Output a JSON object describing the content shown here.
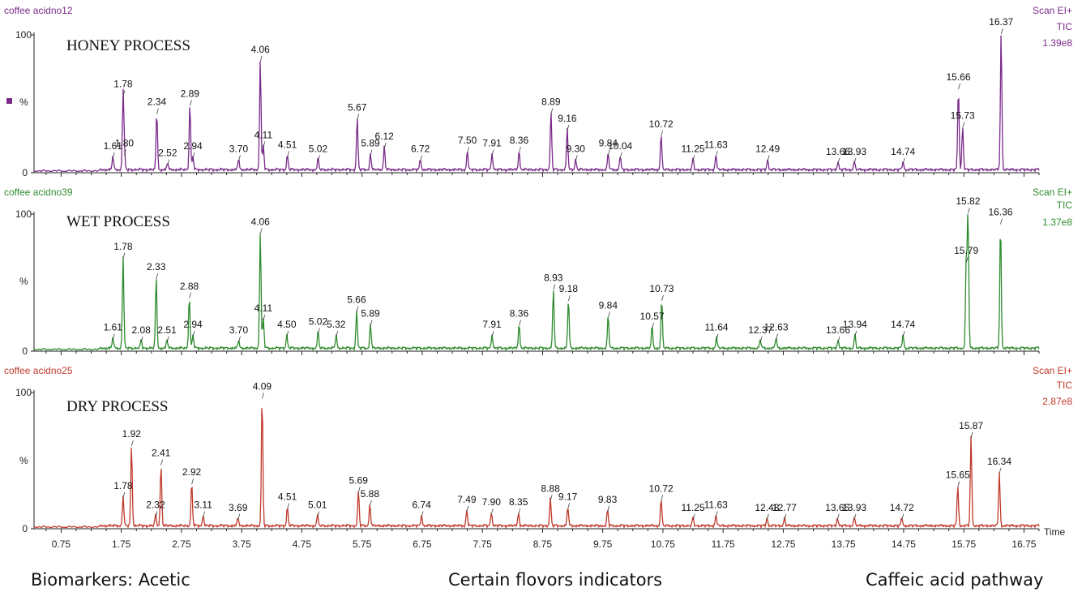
{
  "chart_data": [
    {
      "type": "line",
      "series_name": "coffee acidno12",
      "title": "HONEY PROCESS",
      "scan_label": "Scan EI+",
      "tic_label": "TIC",
      "intensity": "1.39e8",
      "color": "#7a2a8a",
      "ylabel": "%",
      "ylim": [
        0,
        100
      ],
      "yticks": [
        "0",
        "100"
      ],
      "xlim": [
        0.3,
        17.0
      ],
      "peaks": [
        {
          "x": 1.61,
          "y": 10,
          "label": "1.61"
        },
        {
          "x": 1.78,
          "y": 55,
          "label": "1.78"
        },
        {
          "x": 1.8,
          "y": 12,
          "label": "1.80"
        },
        {
          "x": 2.34,
          "y": 42,
          "label": "2.34"
        },
        {
          "x": 2.52,
          "y": 5,
          "label": "2.52"
        },
        {
          "x": 2.89,
          "y": 48,
          "label": "2.89"
        },
        {
          "x": 2.94,
          "y": 10,
          "label": "2.94"
        },
        {
          "x": 3.7,
          "y": 8,
          "label": "3.70"
        },
        {
          "x": 4.06,
          "y": 80,
          "label": "4.06"
        },
        {
          "x": 4.11,
          "y": 18,
          "label": "4.11"
        },
        {
          "x": 4.51,
          "y": 11,
          "label": "4.51"
        },
        {
          "x": 5.02,
          "y": 8,
          "label": "5.02"
        },
        {
          "x": 5.67,
          "y": 38,
          "label": "5.67"
        },
        {
          "x": 5.89,
          "y": 12,
          "label": "5.89"
        },
        {
          "x": 6.12,
          "y": 17,
          "label": "6.12"
        },
        {
          "x": 6.72,
          "y": 8,
          "label": "6.72"
        },
        {
          "x": 7.5,
          "y": 14,
          "label": "7.50"
        },
        {
          "x": 7.91,
          "y": 12,
          "label": "7.91"
        },
        {
          "x": 8.36,
          "y": 14,
          "label": "8.36"
        },
        {
          "x": 8.89,
          "y": 42,
          "label": "8.89"
        },
        {
          "x": 9.16,
          "y": 30,
          "label": "9.16"
        },
        {
          "x": 9.3,
          "y": 8,
          "label": "9.30"
        },
        {
          "x": 9.84,
          "y": 12,
          "label": "9.84"
        },
        {
          "x": 10.04,
          "y": 10,
          "label": "10.04"
        },
        {
          "x": 10.72,
          "y": 26,
          "label": "10.72"
        },
        {
          "x": 11.25,
          "y": 8,
          "label": "11.25"
        },
        {
          "x": 11.63,
          "y": 11,
          "label": "11.63"
        },
        {
          "x": 12.49,
          "y": 8,
          "label": "12.49"
        },
        {
          "x": 13.66,
          "y": 6,
          "label": "13.66"
        },
        {
          "x": 13.93,
          "y": 6,
          "label": "13.93"
        },
        {
          "x": 14.74,
          "y": 6,
          "label": "14.74"
        },
        {
          "x": 15.66,
          "y": 60,
          "label": "15.66"
        },
        {
          "x": 15.73,
          "y": 32,
          "label": "15.73"
        },
        {
          "x": 16.37,
          "y": 100,
          "label": "16.37"
        }
      ]
    },
    {
      "type": "line",
      "series_name": "coffee acidno39",
      "title": "WET PROCESS",
      "scan_label": "Scan EI+",
      "tic_label": "TIC",
      "intensity": "1.37e8",
      "color": "#2e8b2e",
      "ylabel": "%",
      "ylim": [
        0,
        100
      ],
      "yticks": [
        "0",
        "100"
      ],
      "xlim": [
        0.3,
        17.0
      ],
      "peaks": [
        {
          "x": 1.61,
          "y": 8,
          "label": "1.61"
        },
        {
          "x": 1.78,
          "y": 67,
          "label": "1.78"
        },
        {
          "x": 2.08,
          "y": 6,
          "label": "2.08"
        },
        {
          "x": 2.33,
          "y": 52,
          "label": "2.33"
        },
        {
          "x": 2.51,
          "y": 6,
          "label": "2.51"
        },
        {
          "x": 2.88,
          "y": 38,
          "label": "2.88"
        },
        {
          "x": 2.94,
          "y": 10,
          "label": "2.94"
        },
        {
          "x": 3.7,
          "y": 6,
          "label": "3.70"
        },
        {
          "x": 4.06,
          "y": 85,
          "label": "4.06"
        },
        {
          "x": 4.11,
          "y": 22,
          "label": "4.11"
        },
        {
          "x": 4.5,
          "y": 10,
          "label": "4.50"
        },
        {
          "x": 5.02,
          "y": 12,
          "label": "5.02"
        },
        {
          "x": 5.32,
          "y": 10,
          "label": "5.32"
        },
        {
          "x": 5.66,
          "y": 28,
          "label": "5.66"
        },
        {
          "x": 5.89,
          "y": 18,
          "label": "5.89"
        },
        {
          "x": 7.91,
          "y": 10,
          "label": "7.91"
        },
        {
          "x": 8.36,
          "y": 18,
          "label": "8.36"
        },
        {
          "x": 8.93,
          "y": 44,
          "label": "8.93"
        },
        {
          "x": 9.18,
          "y": 36,
          "label": "9.18"
        },
        {
          "x": 9.84,
          "y": 24,
          "label": "9.84"
        },
        {
          "x": 10.57,
          "y": 16,
          "label": "10.57"
        },
        {
          "x": 10.73,
          "y": 36,
          "label": "10.73"
        },
        {
          "x": 11.64,
          "y": 8,
          "label": "11.64"
        },
        {
          "x": 12.37,
          "y": 6,
          "label": "12.37"
        },
        {
          "x": 12.63,
          "y": 8,
          "label": "12.63"
        },
        {
          "x": 13.66,
          "y": 6,
          "label": "13.66"
        },
        {
          "x": 13.94,
          "y": 10,
          "label": "13.94"
        },
        {
          "x": 14.74,
          "y": 10,
          "label": "14.74"
        },
        {
          "x": 15.79,
          "y": 64,
          "label": "15.79"
        },
        {
          "x": 15.82,
          "y": 100,
          "label": "15.82"
        },
        {
          "x": 16.36,
          "y": 92,
          "label": "16.36"
        }
      ]
    },
    {
      "type": "line",
      "series_name": "coffee acidno25",
      "title": "DRY PROCESS",
      "scan_label": "Scan EI+",
      "tic_label": "TIC",
      "intensity": "2.87e8",
      "color": "#c0392b",
      "ylabel": "%",
      "ylim": [
        0,
        100
      ],
      "yticks": [
        "0",
        "100"
      ],
      "xlim": [
        0.3,
        17.0
      ],
      "xlabel": "Time",
      "xticks": [
        0.75,
        1.75,
        2.75,
        3.75,
        4.75,
        5.75,
        6.75,
        7.75,
        8.75,
        9.75,
        10.75,
        11.75,
        12.75,
        13.75,
        14.75,
        15.75,
        16.75
      ],
      "xtick_labels": [
        "0.75",
        "1.75",
        "2.75",
        "3.75",
        "4.75",
        "5.75",
        "6.75",
        "7.75",
        "8.75",
        "9.75",
        "10.75",
        "11.75",
        "12.75",
        "13.75",
        "14.75",
        "15.75",
        "16.75"
      ],
      "peaks": [
        {
          "x": 1.78,
          "y": 22,
          "label": "1.78"
        },
        {
          "x": 1.92,
          "y": 60,
          "label": "1.92"
        },
        {
          "x": 2.32,
          "y": 8,
          "label": "2.32"
        },
        {
          "x": 2.41,
          "y": 46,
          "label": "2.41"
        },
        {
          "x": 2.92,
          "y": 32,
          "label": "2.92"
        },
        {
          "x": 3.11,
          "y": 8,
          "label": "3.11"
        },
        {
          "x": 3.69,
          "y": 6,
          "label": "3.69"
        },
        {
          "x": 4.09,
          "y": 95,
          "label": "4.09"
        },
        {
          "x": 4.51,
          "y": 14,
          "label": "4.51"
        },
        {
          "x": 5.01,
          "y": 8,
          "label": "5.01"
        },
        {
          "x": 5.69,
          "y": 26,
          "label": "5.69"
        },
        {
          "x": 5.88,
          "y": 16,
          "label": "5.88"
        },
        {
          "x": 6.74,
          "y": 8,
          "label": "6.74"
        },
        {
          "x": 7.49,
          "y": 12,
          "label": "7.49"
        },
        {
          "x": 7.9,
          "y": 10,
          "label": "7.90"
        },
        {
          "x": 8.35,
          "y": 10,
          "label": "8.35"
        },
        {
          "x": 8.88,
          "y": 20,
          "label": "8.88"
        },
        {
          "x": 9.17,
          "y": 14,
          "label": "9.17"
        },
        {
          "x": 9.83,
          "y": 12,
          "label": "9.83"
        },
        {
          "x": 10.72,
          "y": 20,
          "label": "10.72"
        },
        {
          "x": 11.25,
          "y": 6,
          "label": "11.25"
        },
        {
          "x": 11.63,
          "y": 8,
          "label": "11.63"
        },
        {
          "x": 12.48,
          "y": 6,
          "label": "12.48"
        },
        {
          "x": 12.77,
          "y": 6,
          "label": "12.77"
        },
        {
          "x": 13.65,
          "y": 6,
          "label": "13.65"
        },
        {
          "x": 13.93,
          "y": 6,
          "label": "13.93"
        },
        {
          "x": 14.72,
          "y": 6,
          "label": "14.72"
        },
        {
          "x": 15.65,
          "y": 30,
          "label": "15.65"
        },
        {
          "x": 15.87,
          "y": 66,
          "label": "15.87"
        },
        {
          "x": 16.34,
          "y": 40,
          "label": "16.34"
        }
      ]
    }
  ],
  "captions": {
    "left": "Biomarkers: Acetic",
    "center": "Certain flovors indicators",
    "right": "Caffeic acid pathway"
  }
}
